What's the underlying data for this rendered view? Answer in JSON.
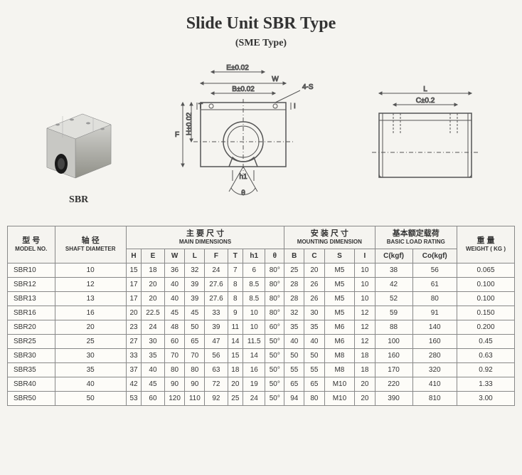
{
  "title": "Slide Unit SBR Type",
  "subtitle": "(SME Type)",
  "product_label": "SBR",
  "diagram_labels": {
    "E": "E±0.02",
    "W": "W",
    "B": "B±0.02",
    "4S": "4-S",
    "F": "F",
    "H": "H±0.02",
    "T": "T",
    "I": "I",
    "h1": "h1",
    "theta": "θ",
    "L": "L",
    "C": "C±0.2"
  },
  "table": {
    "headers": {
      "model": {
        "cn": "型 号",
        "en": "MODEL NO."
      },
      "shaft": {
        "cn": "轴 径",
        "en": "SHAFT DIAMETER"
      },
      "main": {
        "cn": "主 要 尺 寸",
        "en": "MAIN DIMENSIONS"
      },
      "mount": {
        "cn": "安 装 尺 寸",
        "en": "MOUNTING DIMENSION"
      },
      "load": {
        "cn": "基本额定载荷",
        "en": "BASIC LOAD RATING"
      },
      "weight": {
        "cn": "重 量",
        "en": "WEIGHT ( KG )"
      }
    },
    "cols": [
      "H",
      "E",
      "W",
      "L",
      "F",
      "T",
      "h1",
      "θ",
      "B",
      "C",
      "S",
      "I",
      "C(kgf)",
      "Co(kgf)"
    ],
    "rows": [
      {
        "m": "SBR10",
        "d": "10",
        "v": [
          "15",
          "18",
          "36",
          "32",
          "24",
          "7",
          "6",
          "80°",
          "25",
          "20",
          "M5",
          "10",
          "38",
          "56",
          "0.065"
        ]
      },
      {
        "m": "SBR12",
        "d": "12",
        "v": [
          "17",
          "20",
          "40",
          "39",
          "27.6",
          "8",
          "8.5",
          "80°",
          "28",
          "26",
          "M5",
          "10",
          "42",
          "61",
          "0.100"
        ]
      },
      {
        "m": "SBR13",
        "d": "13",
        "v": [
          "17",
          "20",
          "40",
          "39",
          "27.6",
          "8",
          "8.5",
          "80°",
          "28",
          "26",
          "M5",
          "10",
          "52",
          "80",
          "0.100"
        ]
      },
      {
        "m": "SBR16",
        "d": "16",
        "v": [
          "20",
          "22.5",
          "45",
          "45",
          "33",
          "9",
          "10",
          "80°",
          "32",
          "30",
          "M5",
          "12",
          "59",
          "91",
          "0.150"
        ]
      },
      {
        "m": "SBR20",
        "d": "20",
        "v": [
          "23",
          "24",
          "48",
          "50",
          "39",
          "11",
          "10",
          "60°",
          "35",
          "35",
          "M6",
          "12",
          "88",
          "140",
          "0.200"
        ]
      },
      {
        "m": "SBR25",
        "d": "25",
        "v": [
          "27",
          "30",
          "60",
          "65",
          "47",
          "14",
          "11.5",
          "50°",
          "40",
          "40",
          "M6",
          "12",
          "100",
          "160",
          "0.45"
        ]
      },
      {
        "m": "SBR30",
        "d": "30",
        "v": [
          "33",
          "35",
          "70",
          "70",
          "56",
          "15",
          "14",
          "50°",
          "50",
          "50",
          "M8",
          "18",
          "160",
          "280",
          "0.63"
        ]
      },
      {
        "m": "SBR35",
        "d": "35",
        "v": [
          "37",
          "40",
          "80",
          "80",
          "63",
          "18",
          "16",
          "50°",
          "55",
          "55",
          "M8",
          "18",
          "170",
          "320",
          "0.92"
        ]
      },
      {
        "m": "SBR40",
        "d": "40",
        "v": [
          "42",
          "45",
          "90",
          "90",
          "72",
          "20",
          "19",
          "50°",
          "65",
          "65",
          "M10",
          "20",
          "220",
          "410",
          "1.33"
        ]
      },
      {
        "m": "SBR50",
        "d": "50",
        "v": [
          "53",
          "60",
          "120",
          "110",
          "92",
          "25",
          "24",
          "50°",
          "94",
          "80",
          "M10",
          "20",
          "390",
          "810",
          "3.00"
        ]
      }
    ]
  }
}
